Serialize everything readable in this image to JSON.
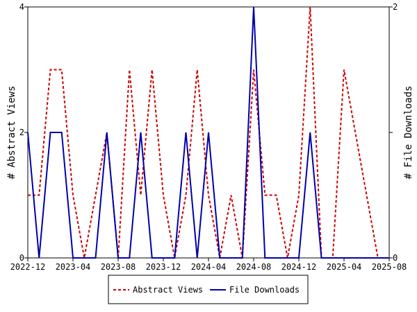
{
  "chart_data": {
    "type": "line",
    "x_tick_labels": [
      "2022-12",
      "2023-04",
      "2023-08",
      "2023-12",
      "2024-04",
      "2024-08",
      "2024-12",
      "2025-04",
      "2025-08"
    ],
    "x_range": [
      "2022-12",
      "2025-08"
    ],
    "y_left": {
      "label": "# Abstract Views",
      "ylim": [
        0,
        4
      ],
      "ticks": [
        "0",
        "2",
        "4"
      ]
    },
    "y_right": {
      "label": "# File Downloads",
      "ylim": [
        0,
        2
      ],
      "ticks": [
        "0",
        "1",
        "2"
      ]
    },
    "legend_position": "bottom",
    "grid": false,
    "series": [
      {
        "name": "Abstract Views",
        "axis": "left",
        "color": "#cc0000",
        "style": "dashed",
        "x": [
          "2022-12",
          "2023-01",
          "2023-02",
          "2023-03",
          "2023-04",
          "2023-05",
          "2023-06",
          "2023-07",
          "2023-08",
          "2023-09",
          "2023-10",
          "2023-11",
          "2023-12",
          "2024-01",
          "2024-02",
          "2024-03",
          "2024-04",
          "2024-05",
          "2024-06",
          "2024-07",
          "2024-08",
          "2024-09",
          "2024-10",
          "2024-11",
          "2024-12",
          "2025-01",
          "2025-02",
          "2025-03",
          "2025-04",
          "2025-05",
          "2025-06",
          "2025-07",
          "2025-08"
        ],
        "values": [
          1,
          1,
          3,
          3,
          1,
          0,
          1,
          2,
          0,
          3,
          1,
          3,
          1,
          0,
          1,
          3,
          1,
          0,
          1,
          0,
          3,
          1,
          1,
          0,
          1,
          4,
          0,
          0,
          3,
          2,
          1,
          0,
          0
        ]
      },
      {
        "name": "File Downloads",
        "axis": "right",
        "color": "#0000aa",
        "style": "solid",
        "x": [
          "2022-12",
          "2023-01",
          "2023-02",
          "2023-03",
          "2023-04",
          "2023-05",
          "2023-06",
          "2023-07",
          "2023-08",
          "2023-09",
          "2023-10",
          "2023-11",
          "2023-12",
          "2024-01",
          "2024-02",
          "2024-03",
          "2024-04",
          "2024-05",
          "2024-06",
          "2024-07",
          "2024-08",
          "2024-09",
          "2024-10",
          "2024-11",
          "2024-12",
          "2025-01",
          "2025-02",
          "2025-03",
          "2025-04",
          "2025-05",
          "2025-06",
          "2025-07",
          "2025-08"
        ],
        "values": [
          1,
          0,
          1,
          1,
          0,
          0,
          0,
          1,
          0,
          0,
          1,
          0,
          0,
          0,
          1,
          0,
          1,
          0,
          0,
          0,
          2,
          0,
          0,
          0,
          0,
          1,
          0,
          0,
          0,
          0,
          0,
          0,
          0
        ]
      }
    ]
  }
}
